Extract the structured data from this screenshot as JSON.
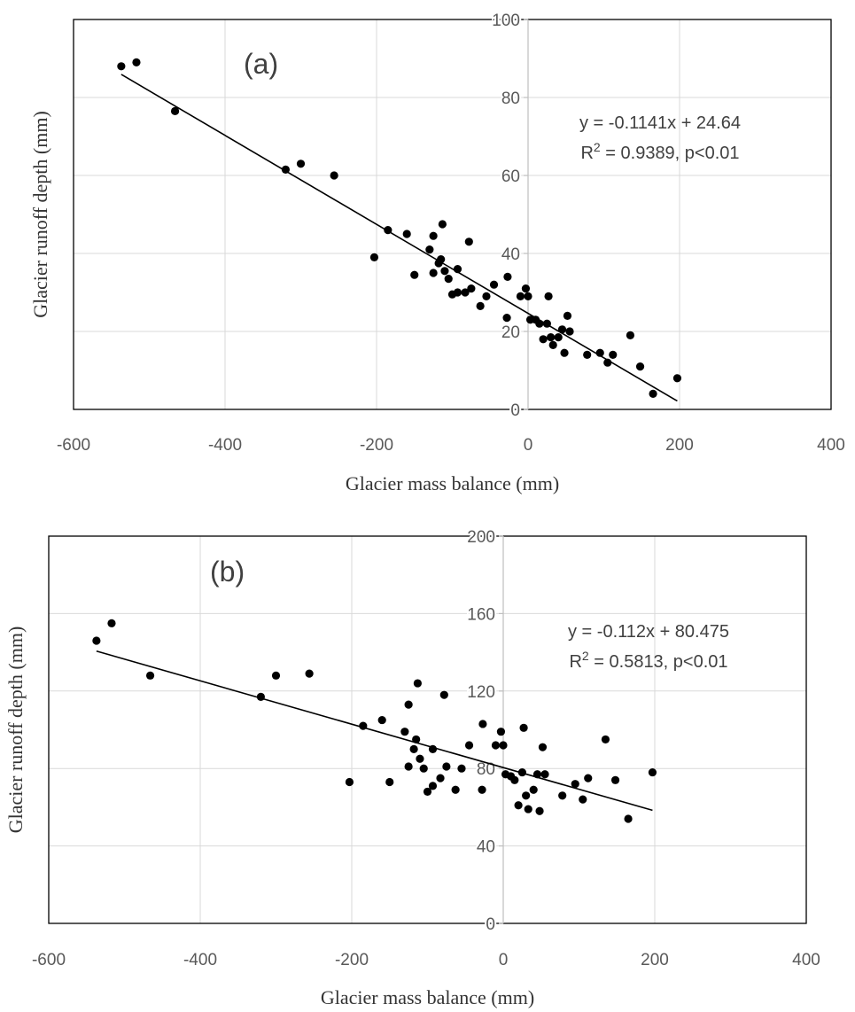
{
  "chart_data": [
    {
      "type": "scatter",
      "panel_label": "(a)",
      "xlabel": "Glacier mass balance (mm)",
      "ylabel": "Glacier runoff depth (mm)",
      "xlim": [
        -600,
        400
      ],
      "ylim": [
        0,
        100
      ],
      "x_ticks": [
        "-600",
        "-400",
        "-200",
        "0",
        "200",
        "400"
      ],
      "y_ticks": [
        "0",
        "20",
        "40",
        "60",
        "80",
        "100"
      ],
      "grid": true,
      "equation": "y = -0.1141x + 24.64",
      "r2_label": "R",
      "r2_sup": "2",
      "r2_text": " = 0.9389, p<0.01",
      "trendline": {
        "slope": -0.1141,
        "intercept": 24.64,
        "x_range": [
          -537,
          197
        ]
      },
      "points": [
        [
          -537,
          88
        ],
        [
          -517,
          89
        ],
        [
          -466,
          76.5
        ],
        [
          -320,
          61.5
        ],
        [
          -300,
          63
        ],
        [
          -256,
          60
        ],
        [
          -203,
          39
        ],
        [
          -185,
          46
        ],
        [
          -160,
          45
        ],
        [
          -150,
          34.5
        ],
        [
          -130,
          41
        ],
        [
          -125,
          35
        ],
        [
          -125,
          44.5
        ],
        [
          -118,
          37.5
        ],
        [
          -113,
          47.5
        ],
        [
          -115,
          38.5
        ],
        [
          -110,
          35.5
        ],
        [
          -105,
          33.5
        ],
        [
          -100,
          29.5
        ],
        [
          -93,
          30
        ],
        [
          -93,
          36
        ],
        [
          -83,
          30
        ],
        [
          -78,
          43
        ],
        [
          -75,
          31
        ],
        [
          -63,
          26.5
        ],
        [
          -55,
          29
        ],
        [
          -45,
          32
        ],
        [
          -28,
          23.5
        ],
        [
          -27,
          34
        ],
        [
          -10,
          29
        ],
        [
          -3,
          31
        ],
        [
          0,
          29
        ],
        [
          3,
          23
        ],
        [
          10,
          23
        ],
        [
          15,
          22
        ],
        [
          20,
          18
        ],
        [
          25,
          22
        ],
        [
          27,
          29
        ],
        [
          30,
          18.5
        ],
        [
          33,
          16.5
        ],
        [
          40,
          18.5
        ],
        [
          45,
          20.5
        ],
        [
          48,
          14.5
        ],
        [
          52,
          24
        ],
        [
          55,
          20
        ],
        [
          78,
          14
        ],
        [
          95,
          14.5
        ],
        [
          105,
          12
        ],
        [
          112,
          14
        ],
        [
          135,
          19
        ],
        [
          148,
          11
        ],
        [
          165,
          4
        ],
        [
          197,
          8
        ]
      ]
    },
    {
      "type": "scatter",
      "panel_label": "(b)",
      "xlabel": "Glacier mass balance (mm)",
      "ylabel": "Glacier runoff depth (mm)",
      "xlim": [
        -600,
        400
      ],
      "ylim": [
        0,
        200
      ],
      "x_ticks": [
        "-600",
        "-400",
        "-200",
        "0",
        "200",
        "400"
      ],
      "y_ticks": [
        "0",
        "40",
        "80",
        "120",
        "160",
        "200"
      ],
      "grid": true,
      "equation": "y = -0.112x + 80.475",
      "r2_label": "R",
      "r2_sup": "2",
      "r2_text": " = 0.5813, p<0.01",
      "trendline": {
        "slope": -0.112,
        "intercept": 80.475,
        "x_range": [
          -537,
          197
        ]
      },
      "points": [
        [
          -537,
          146
        ],
        [
          -517,
          155
        ],
        [
          -466,
          128
        ],
        [
          -320,
          117
        ],
        [
          -300,
          128
        ],
        [
          -256,
          129
        ],
        [
          -203,
          73
        ],
        [
          -185,
          102
        ],
        [
          -160,
          105
        ],
        [
          -150,
          73
        ],
        [
          -130,
          99
        ],
        [
          -125,
          81
        ],
        [
          -125,
          113
        ],
        [
          -118,
          90
        ],
        [
          -113,
          124
        ],
        [
          -115,
          95
        ],
        [
          -110,
          85
        ],
        [
          -105,
          80
        ],
        [
          -100,
          68
        ],
        [
          -93,
          71
        ],
        [
          -93,
          90
        ],
        [
          -83,
          75
        ],
        [
          -78,
          118
        ],
        [
          -75,
          81
        ],
        [
          -63,
          69
        ],
        [
          -55,
          80
        ],
        [
          -45,
          92
        ],
        [
          -28,
          69
        ],
        [
          -27,
          103
        ],
        [
          -10,
          92
        ],
        [
          -3,
          99
        ],
        [
          0,
          92
        ],
        [
          3,
          77
        ],
        [
          10,
          76
        ],
        [
          15,
          74
        ],
        [
          20,
          61
        ],
        [
          25,
          78
        ],
        [
          27,
          101
        ],
        [
          30,
          66
        ],
        [
          33,
          59
        ],
        [
          40,
          69
        ],
        [
          45,
          77
        ],
        [
          48,
          58
        ],
        [
          52,
          91
        ],
        [
          55,
          77
        ],
        [
          78,
          66
        ],
        [
          95,
          72
        ],
        [
          105,
          64
        ],
        [
          112,
          75
        ],
        [
          135,
          95
        ],
        [
          148,
          74
        ],
        [
          165,
          54
        ],
        [
          197,
          78
        ]
      ]
    }
  ]
}
